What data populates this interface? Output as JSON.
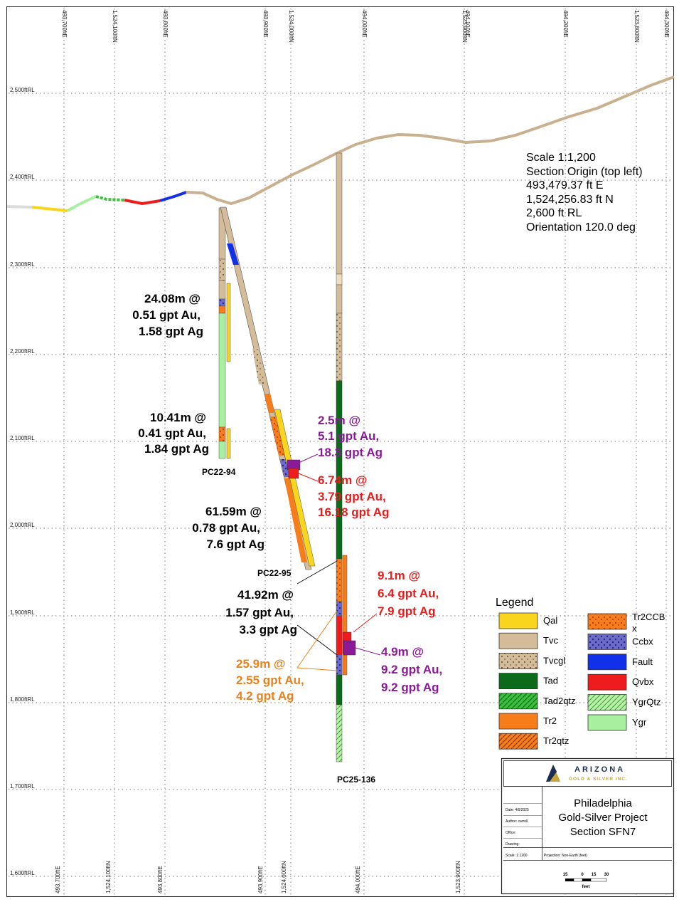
{
  "grid": {
    "rl_labels": [
      "2,500ftRL",
      "2,400ftRL",
      "2,300ftRL",
      "2,200ftRL",
      "2,100ftRL",
      "2,000ftRL",
      "1,900ftRL",
      "1,800ftRL",
      "1,700ftRL",
      "1,600ftRL"
    ],
    "top_labels": [
      "493,700ftE",
      "1,524,100ftN",
      "493,800ftE",
      "493,900ftE",
      "1,524,000ftN",
      "494,000ftE",
      "1,523,900ftN",
      "494,100ftE",
      "494,200ftE",
      "1,523,800ftN",
      "494,300ftE"
    ],
    "bottom_labels": [
      "493,700ftE",
      "1,524,100ftN",
      "493,800ftE",
      "493,900ftE",
      "1,524,000ftN",
      "494,000ftE",
      "1,523,900ftN"
    ]
  },
  "section_info": {
    "scale": "Scale 1:1,200",
    "origin_title": "Section Origin (top left)",
    "easting": "493,479.37 ft E",
    "northing": "1,524,256.83 ft N",
    "rl": "2,600 ft RL",
    "orientation": "Orientation 120.0 deg"
  },
  "holes": {
    "pc22_94": "PC22-94",
    "pc22_95": "PC22-95",
    "pc25_136": "PC25-136"
  },
  "intercepts": [
    {
      "lines": [
        "24.08m @",
        "0.51 gpt Au,",
        "1.58 gpt Ag"
      ],
      "color": "#111111"
    },
    {
      "lines": [
        "10.41m @",
        "0.41 gpt Au,",
        "1.84 gpt Ag"
      ],
      "color": "#111111"
    },
    {
      "lines": [
        "61.59m @",
        "0.78 gpt Au,",
        "7.6 gpt Ag"
      ],
      "color": "#111111"
    },
    {
      "lines": [
        "2.5m @",
        "5.1 gpt Au,",
        "18.3 gpt Ag"
      ],
      "color": "#8a1a96"
    },
    {
      "lines": [
        "6.74m @",
        "3.79 gpt Au,",
        "16.18 gpt Ag"
      ],
      "color": "#e81c1c"
    },
    {
      "lines": [
        "41.92m @",
        "1.57 gpt Au,",
        "3.3 gpt Ag"
      ],
      "color": "#111111"
    },
    {
      "lines": [
        "9.1m @",
        "6.4 gpt Au,",
        "7.9 gpt Ag"
      ],
      "color": "#e81c1c"
    },
    {
      "lines": [
        "4.9m @",
        "9.2 gpt Au,",
        "9.2 gpt Ag"
      ],
      "color": "#8a1a96"
    },
    {
      "lines": [
        "25.9m @",
        "2.55 gpt Au,",
        "4.2 gpt Ag"
      ],
      "color": "#e8821e"
    }
  ],
  "legend": {
    "title": "Legend",
    "items": [
      {
        "label": "Qal",
        "color": "#f9d51e",
        "pattern": "solid"
      },
      {
        "label": "Tvc",
        "color": "#d4bc9a",
        "pattern": "solid"
      },
      {
        "label": "Tvcgl",
        "color": "#d4bc9a",
        "pattern": "dots"
      },
      {
        "label": "Tad",
        "color": "#0b6b1a",
        "pattern": "solid"
      },
      {
        "label": "Tad2qtz",
        "color": "#3cbf3c",
        "pattern": "hatch"
      },
      {
        "label": "Tr2",
        "color": "#f77d1a",
        "pattern": "solid"
      },
      {
        "label": "Tr2qtz",
        "color": "#f77d1a",
        "pattern": "hatch"
      },
      {
        "label": "Tr2CCB x",
        "color": "#f77d1a",
        "pattern": "dots"
      },
      {
        "label": "Ccbx",
        "color": "#6b6bcf",
        "pattern": "dots"
      },
      {
        "label": "Fault",
        "color": "#1230e8",
        "pattern": "solid"
      },
      {
        "label": "Qvbx",
        "color": "#ee1c1c",
        "pattern": "solid"
      },
      {
        "label": "YgrQtz",
        "color": "#b8f0a8",
        "pattern": "hatch"
      },
      {
        "label": "Ygr",
        "color": "#a8f0a0",
        "pattern": "solid"
      }
    ]
  },
  "title_block": {
    "company": "ARIZONA",
    "company_sub": "GOLD & SILVER INC.",
    "title1": "Philadelphia",
    "title2": "Gold-Silver Project",
    "title3": "Section SFN7",
    "date": "Date: 4/6/2025",
    "author": "Author: carroll",
    "office": "Office:",
    "drawing": "Drawing:",
    "scale": "Scale: 1:1200",
    "projection": "Projection: Non-Earth (feet)",
    "bar_ticks": [
      "15",
      "0",
      "15",
      "30"
    ],
    "bar_unit": "feet"
  },
  "colors": {
    "topo": "#c9b08f",
    "grid": "#555555",
    "qal": "#f9d51e",
    "tvc": "#d4bc9a",
    "tad": "#0b6b1a",
    "tr2": "#f77d1a",
    "ccbx": "#6b6bcf",
    "fault": "#1230e8",
    "qvbx": "#ee1c1c",
    "ygr": "#a8f0a0",
    "purple": "#8a1a96",
    "orange": "#e8821e"
  }
}
